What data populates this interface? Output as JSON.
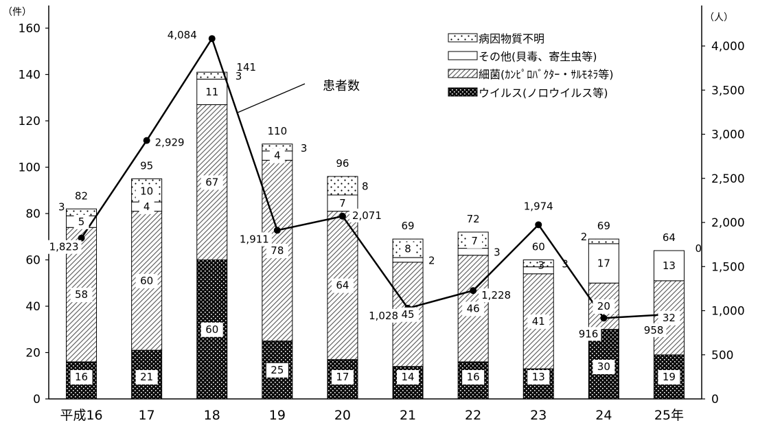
{
  "chart_data": {
    "type": "bar",
    "categories": [
      "平成16",
      "17",
      "18",
      "19",
      "20",
      "21",
      "22",
      "23",
      "24",
      "25年"
    ],
    "left_axis": {
      "unit": "（件）",
      "ylim": [
        0,
        160
      ],
      "ticks": [
        "0",
        "20",
        "40",
        "60",
        "80",
        "100",
        "120",
        "140",
        "160"
      ]
    },
    "right_axis": {
      "unit": "（人）",
      "ylim": [
        0,
        4250
      ],
      "ticks": [
        "0",
        "500",
        "1,000",
        "1,500",
        "2,000",
        "2,500",
        "3,000",
        "3,500",
        "4,000"
      ]
    },
    "series": [
      {
        "name": "ウイルス(ノロウイルス等)",
        "pattern": "virus",
        "values": [
          16,
          21,
          60,
          25,
          17,
          14,
          16,
          13,
          30,
          19
        ],
        "labels": [
          "16",
          "21",
          "60",
          "25",
          "17",
          "14",
          "16",
          "13",
          "30",
          "19"
        ]
      },
      {
        "name": "細菌(ｶﾝﾋﾟﾛﾊﾞｸﾀｰ・ｻﾙﾓﾈﾗ等)",
        "pattern": "bacteria",
        "values": [
          58,
          60,
          67,
          78,
          64,
          45,
          46,
          41,
          20,
          32
        ],
        "labels": [
          "58",
          "60",
          "67",
          "78",
          "64",
          "45",
          "46",
          "41",
          "20",
          "32"
        ]
      },
      {
        "name": "その他(貝毒、寄生虫等)",
        "pattern": "other",
        "values": [
          5,
          4,
          11,
          4,
          7,
          2,
          3,
          3,
          17,
          13
        ],
        "labels": [
          "5",
          "4",
          "11",
          "4",
          "7",
          "2",
          "3",
          "3",
          "17",
          "13"
        ]
      },
      {
        "name": "病因物質不明",
        "pattern": "unknown",
        "values": [
          3,
          10,
          3,
          3,
          8,
          8,
          7,
          3,
          2,
          0
        ],
        "labels": [
          "3",
          "10",
          "3",
          "3",
          "8",
          "8",
          "7",
          "3",
          "2",
          "0"
        ]
      }
    ],
    "totals": [
      "82",
      "95",
      "141",
      "110",
      "96",
      "69",
      "72",
      "60",
      "69",
      "64"
    ],
    "line": {
      "name": "患者数",
      "values": [
        1823,
        2929,
        4084,
        1911,
        2071,
        1028,
        1228,
        1974,
        916,
        958
      ],
      "labels": [
        "1,823",
        "2,929",
        "4,084",
        "1,911",
        "2,071",
        "1,028",
        "1,228",
        "1,974",
        "916",
        "958"
      ]
    },
    "legend_order": [
      "unknown",
      "other",
      "bacteria",
      "virus"
    ],
    "legend_position": "top-right",
    "colors": {
      "bar_stroke": "#000000",
      "fill_other": "#ffffff",
      "line": "#000000"
    }
  }
}
